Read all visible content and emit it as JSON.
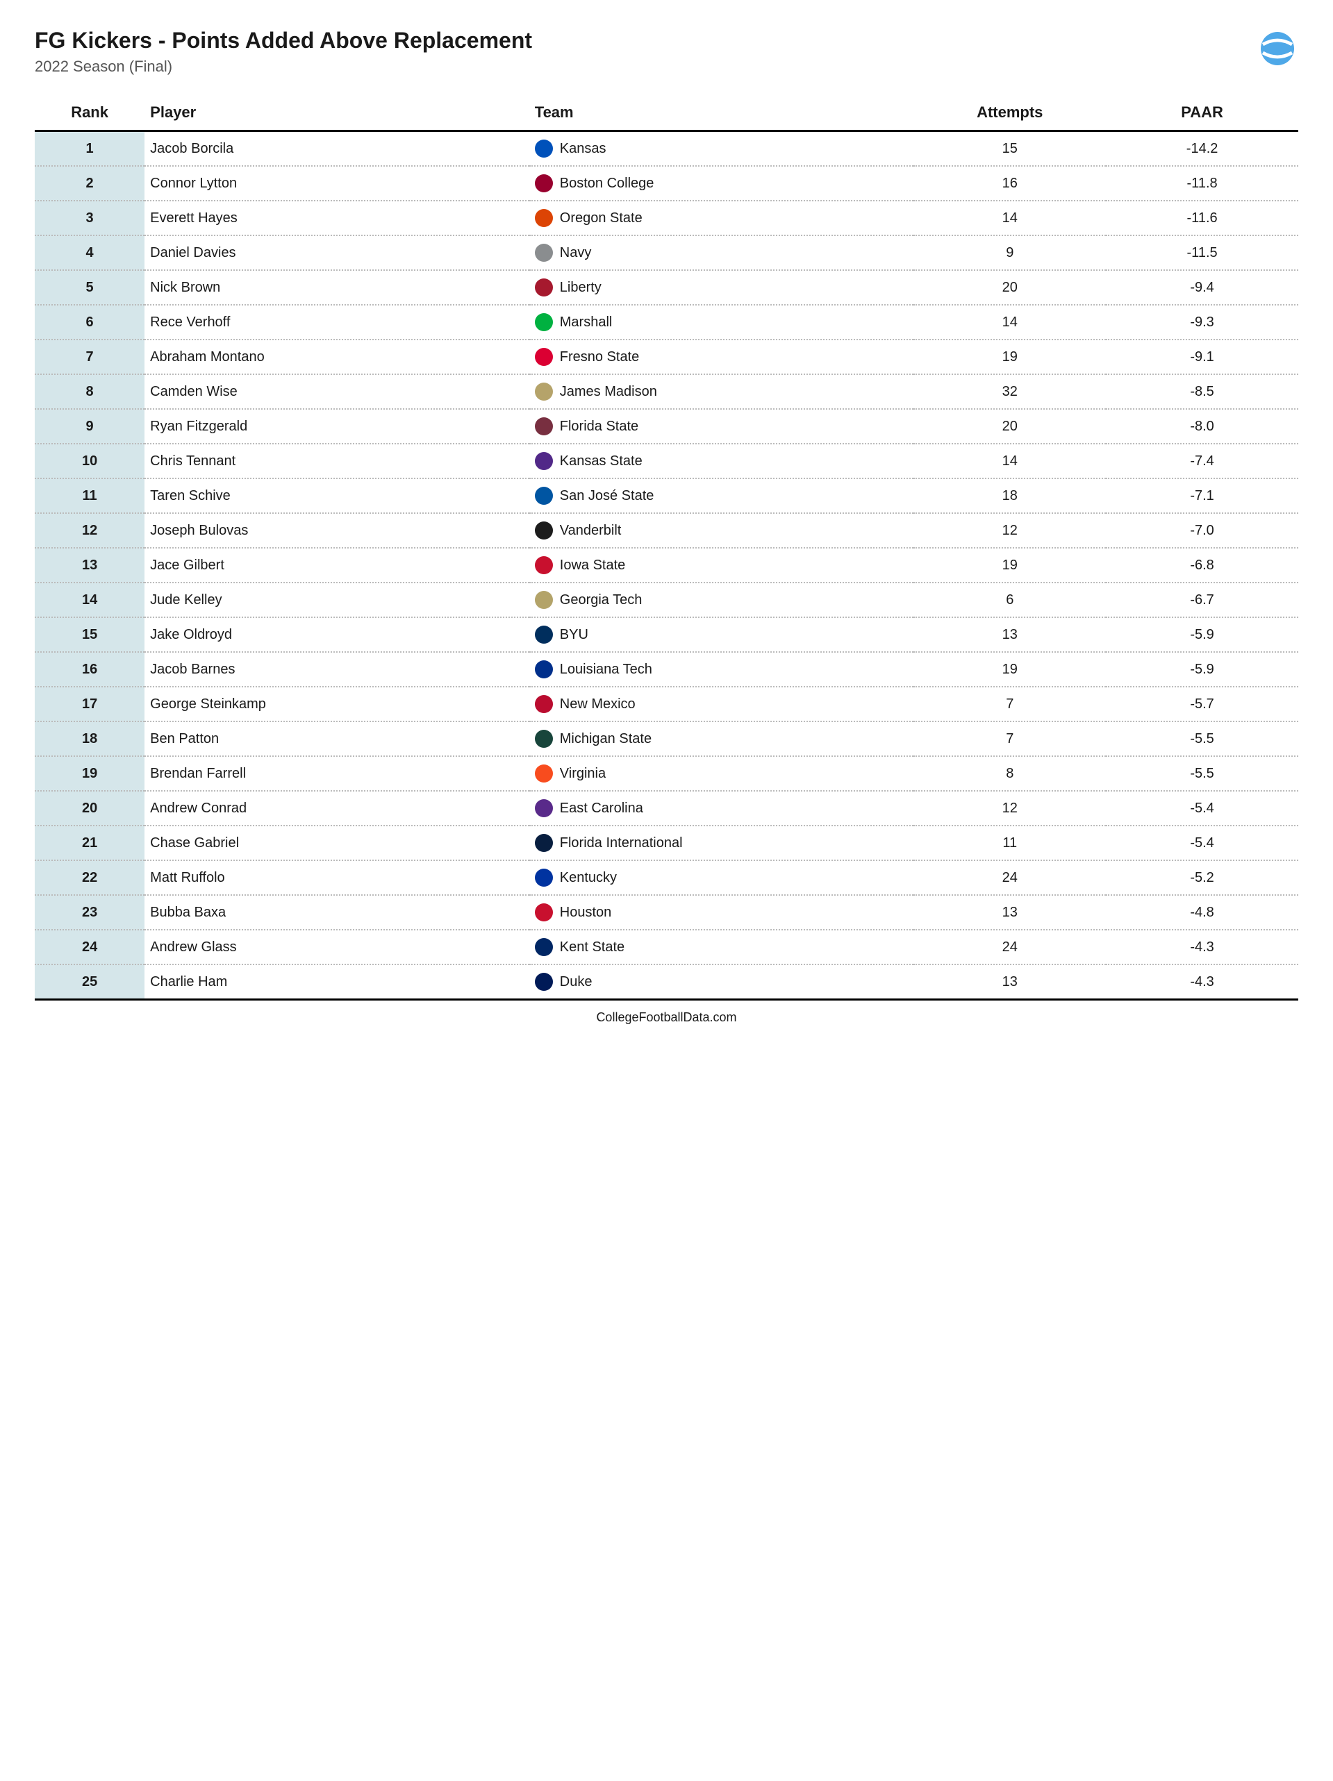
{
  "title": "FG Kickers - Points Added Above Replacement",
  "subtitle": "2022 Season (Final)",
  "footer": "CollegeFootballData.com",
  "logo_color": "#4ea8e8",
  "columns": {
    "rank": "Rank",
    "player": "Player",
    "team": "Team",
    "attempts": "Attempts",
    "paar": "PAAR"
  },
  "styling": {
    "rank_bg": "#d5e6ea",
    "header_border": "#000000",
    "row_border": "#bbbbbb",
    "title_fontsize": 32,
    "subtitle_fontsize": 22,
    "header_fontsize": 22,
    "cell_fontsize": 20,
    "footer_fontsize": 18
  },
  "rows": [
    {
      "rank": "1",
      "player": "Jacob Borcila",
      "team": "Kansas",
      "logo_color": "#0051ba",
      "attempts": "15",
      "paar": "-14.2"
    },
    {
      "rank": "2",
      "player": "Connor Lytton",
      "team": "Boston College",
      "logo_color": "#98002e",
      "attempts": "16",
      "paar": "-11.8"
    },
    {
      "rank": "3",
      "player": "Everett Hayes",
      "team": "Oregon State",
      "logo_color": "#dc4405",
      "attempts": "14",
      "paar": "-11.6"
    },
    {
      "rank": "4",
      "player": "Daniel Davies",
      "team": "Navy",
      "logo_color": "#8a8d8f",
      "attempts": "9",
      "paar": "-11.5"
    },
    {
      "rank": "5",
      "player": "Nick Brown",
      "team": "Liberty",
      "logo_color": "#a6192e",
      "attempts": "20",
      "paar": "-9.4"
    },
    {
      "rank": "6",
      "player": "Rece Verhoff",
      "team": "Marshall",
      "logo_color": "#00b140",
      "attempts": "14",
      "paar": "-9.3"
    },
    {
      "rank": "7",
      "player": "Abraham Montano",
      "team": "Fresno State",
      "logo_color": "#db0032",
      "attempts": "19",
      "paar": "-9.1"
    },
    {
      "rank": "8",
      "player": "Camden Wise",
      "team": "James Madison",
      "logo_color": "#b5a36a",
      "attempts": "32",
      "paar": "-8.5"
    },
    {
      "rank": "9",
      "player": "Ryan Fitzgerald",
      "team": "Florida State",
      "logo_color": "#782f40",
      "attempts": "20",
      "paar": "-8.0"
    },
    {
      "rank": "10",
      "player": "Chris Tennant",
      "team": "Kansas State",
      "logo_color": "#512888",
      "attempts": "14",
      "paar": "-7.4"
    },
    {
      "rank": "11",
      "player": "Taren Schive",
      "team": "San José State",
      "logo_color": "#0055a2",
      "attempts": "18",
      "paar": "-7.1"
    },
    {
      "rank": "12",
      "player": "Joseph Bulovas",
      "team": "Vanderbilt",
      "logo_color": "#1c1c1c",
      "attempts": "12",
      "paar": "-7.0"
    },
    {
      "rank": "13",
      "player": "Jace Gilbert",
      "team": "Iowa State",
      "logo_color": "#c8102e",
      "attempts": "19",
      "paar": "-6.8"
    },
    {
      "rank": "14",
      "player": "Jude Kelley",
      "team": "Georgia Tech",
      "logo_color": "#b3a369",
      "attempts": "6",
      "paar": "-6.7"
    },
    {
      "rank": "15",
      "player": "Jake Oldroyd",
      "team": "BYU",
      "logo_color": "#002e5d",
      "attempts": "13",
      "paar": "-5.9"
    },
    {
      "rank": "16",
      "player": "Jacob Barnes",
      "team": "Louisiana Tech",
      "logo_color": "#002f8b",
      "attempts": "19",
      "paar": "-5.9"
    },
    {
      "rank": "17",
      "player": "George Steinkamp",
      "team": "New Mexico",
      "logo_color": "#ba0c2f",
      "attempts": "7",
      "paar": "-5.7"
    },
    {
      "rank": "18",
      "player": "Ben Patton",
      "team": "Michigan State",
      "logo_color": "#18453b",
      "attempts": "7",
      "paar": "-5.5"
    },
    {
      "rank": "19",
      "player": "Brendan Farrell",
      "team": "Virginia",
      "logo_color": "#f84c1e",
      "attempts": "8",
      "paar": "-5.5"
    },
    {
      "rank": "20",
      "player": "Andrew Conrad",
      "team": "East Carolina",
      "logo_color": "#592a8a",
      "attempts": "12",
      "paar": "-5.4"
    },
    {
      "rank": "21",
      "player": "Chase Gabriel",
      "team": "Florida International",
      "logo_color": "#081e3f",
      "attempts": "11",
      "paar": "-5.4"
    },
    {
      "rank": "22",
      "player": "Matt Ruffolo",
      "team": "Kentucky",
      "logo_color": "#0033a0",
      "attempts": "24",
      "paar": "-5.2"
    },
    {
      "rank": "23",
      "player": "Bubba Baxa",
      "team": "Houston",
      "logo_color": "#c8102e",
      "attempts": "13",
      "paar": "-4.8"
    },
    {
      "rank": "24",
      "player": "Andrew Glass",
      "team": "Kent State",
      "logo_color": "#002664",
      "attempts": "24",
      "paar": "-4.3"
    },
    {
      "rank": "25",
      "player": "Charlie Ham",
      "team": "Duke",
      "logo_color": "#001a57",
      "attempts": "13",
      "paar": "-4.3"
    }
  ]
}
